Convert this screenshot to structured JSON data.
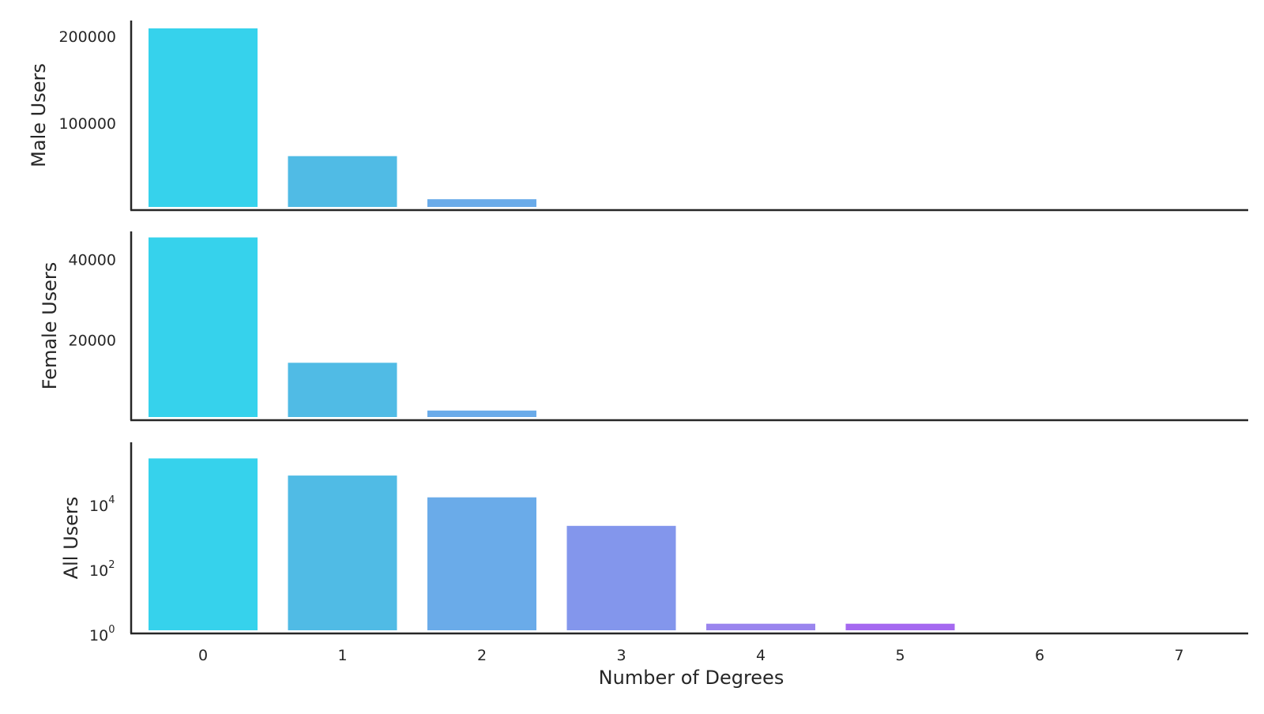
{
  "xlabel": "Number of Degrees",
  "chart_data": [
    {
      "type": "bar",
      "ylabel": "Male Users",
      "yscale": "linear",
      "ylim": [
        0,
        218000
      ],
      "yticks": [
        100000,
        200000
      ],
      "ytick_labels": [
        "100000",
        "200000"
      ],
      "categories": [
        "0",
        "1",
        "2",
        "3",
        "4",
        "5",
        "6",
        "7"
      ],
      "values": [
        209000,
        62000,
        12500,
        0,
        0,
        0,
        0,
        0
      ]
    },
    {
      "type": "bar",
      "ylabel": "Female Users",
      "yscale": "linear",
      "ylim": [
        0,
        47000
      ],
      "yticks": [
        20000,
        40000
      ],
      "ytick_labels": [
        "20000",
        "40000"
      ],
      "categories": [
        "0",
        "1",
        "2",
        "3",
        "4",
        "5",
        "6",
        "7"
      ],
      "values": [
        45500,
        14300,
        2400,
        0,
        0,
        0,
        0,
        0
      ]
    },
    {
      "type": "bar",
      "ylabel": "All Users",
      "yscale": "log",
      "ylim": [
        1,
        800000
      ],
      "yticks": [
        1,
        100,
        10000
      ],
      "ytick_labels": [
        {
          "base": "10",
          "exp": "0"
        },
        {
          "base": "10",
          "exp": "2"
        },
        {
          "base": "10",
          "exp": "4"
        }
      ],
      "categories": [
        "0",
        "1",
        "2",
        "3",
        "4",
        "5",
        "6",
        "7"
      ],
      "values": [
        255000,
        75000,
        16000,
        2100,
        2,
        2,
        0,
        0
      ]
    }
  ],
  "colors": [
    "#36d2ec",
    "#50bbe5",
    "#6aabe9",
    "#8396ec",
    "#9a85ee",
    "#a569f0",
    "#b055f5",
    "#bb40f7"
  ]
}
